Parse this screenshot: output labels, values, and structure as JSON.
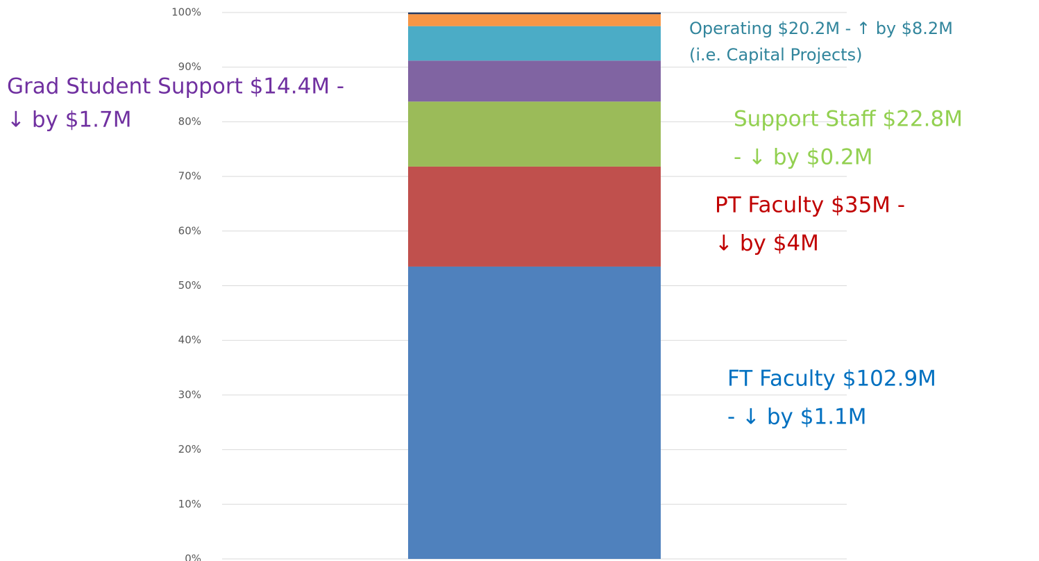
{
  "chart_data": {
    "type": "stacked_bar",
    "categories": [
      null
    ],
    "series": [
      {
        "color": "#4f81bd",
        "values": [
          53.5
        ]
      },
      {
        "color": "#c0504d",
        "values": [
          18.3
        ]
      },
      {
        "color": "#9bbb59",
        "values": [
          11.9
        ]
      },
      {
        "color": "#8064a2",
        "values": [
          7.5
        ]
      },
      {
        "color": "#4bacc6",
        "values": [
          6.3
        ]
      },
      {
        "color": "#f79646",
        "values": [
          2.2
        ]
      },
      {
        "color": "#1f3864",
        "values": [
          0.3
        ]
      }
    ],
    "ylim": [
      0,
      100
    ],
    "yticks": [
      {
        "value": 0,
        "label": "0%"
      },
      {
        "value": 10,
        "label": "10%"
      },
      {
        "value": 20,
        "label": "20%"
      },
      {
        "value": 30,
        "label": "30%"
      },
      {
        "value": 40,
        "label": "40%"
      },
      {
        "value": 50,
        "label": "50%"
      },
      {
        "value": 60,
        "label": "60%"
      },
      {
        "value": 70,
        "label": "70%"
      },
      {
        "value": 80,
        "label": "80%"
      },
      {
        "value": 90,
        "label": "90%"
      },
      {
        "value": 100,
        "label": "100%"
      }
    ],
    "grid": true,
    "annotations": [
      {
        "lines": [
          "Operating $20.2M - ↑ by $8.2M",
          "(i.e. Capital Projects)"
        ],
        "color": "#31859c"
      },
      {
        "lines": [
          "Grad Student Support $14.4M -",
          "↓ by $1.7M"
        ],
        "color": "#7030a0"
      },
      {
        "lines": [
          "Support Staff $22.8M",
          "- ↓ by $0.2M"
        ],
        "color": "#92d050"
      },
      {
        "lines": [
          "PT Faculty $35M -",
          "↓ by $4M"
        ],
        "color": "#c00000"
      },
      {
        "lines": [
          "FT Faculty $102.9M",
          "- ↓ by $1.1M"
        ],
        "color": "#0070c0"
      }
    ]
  }
}
